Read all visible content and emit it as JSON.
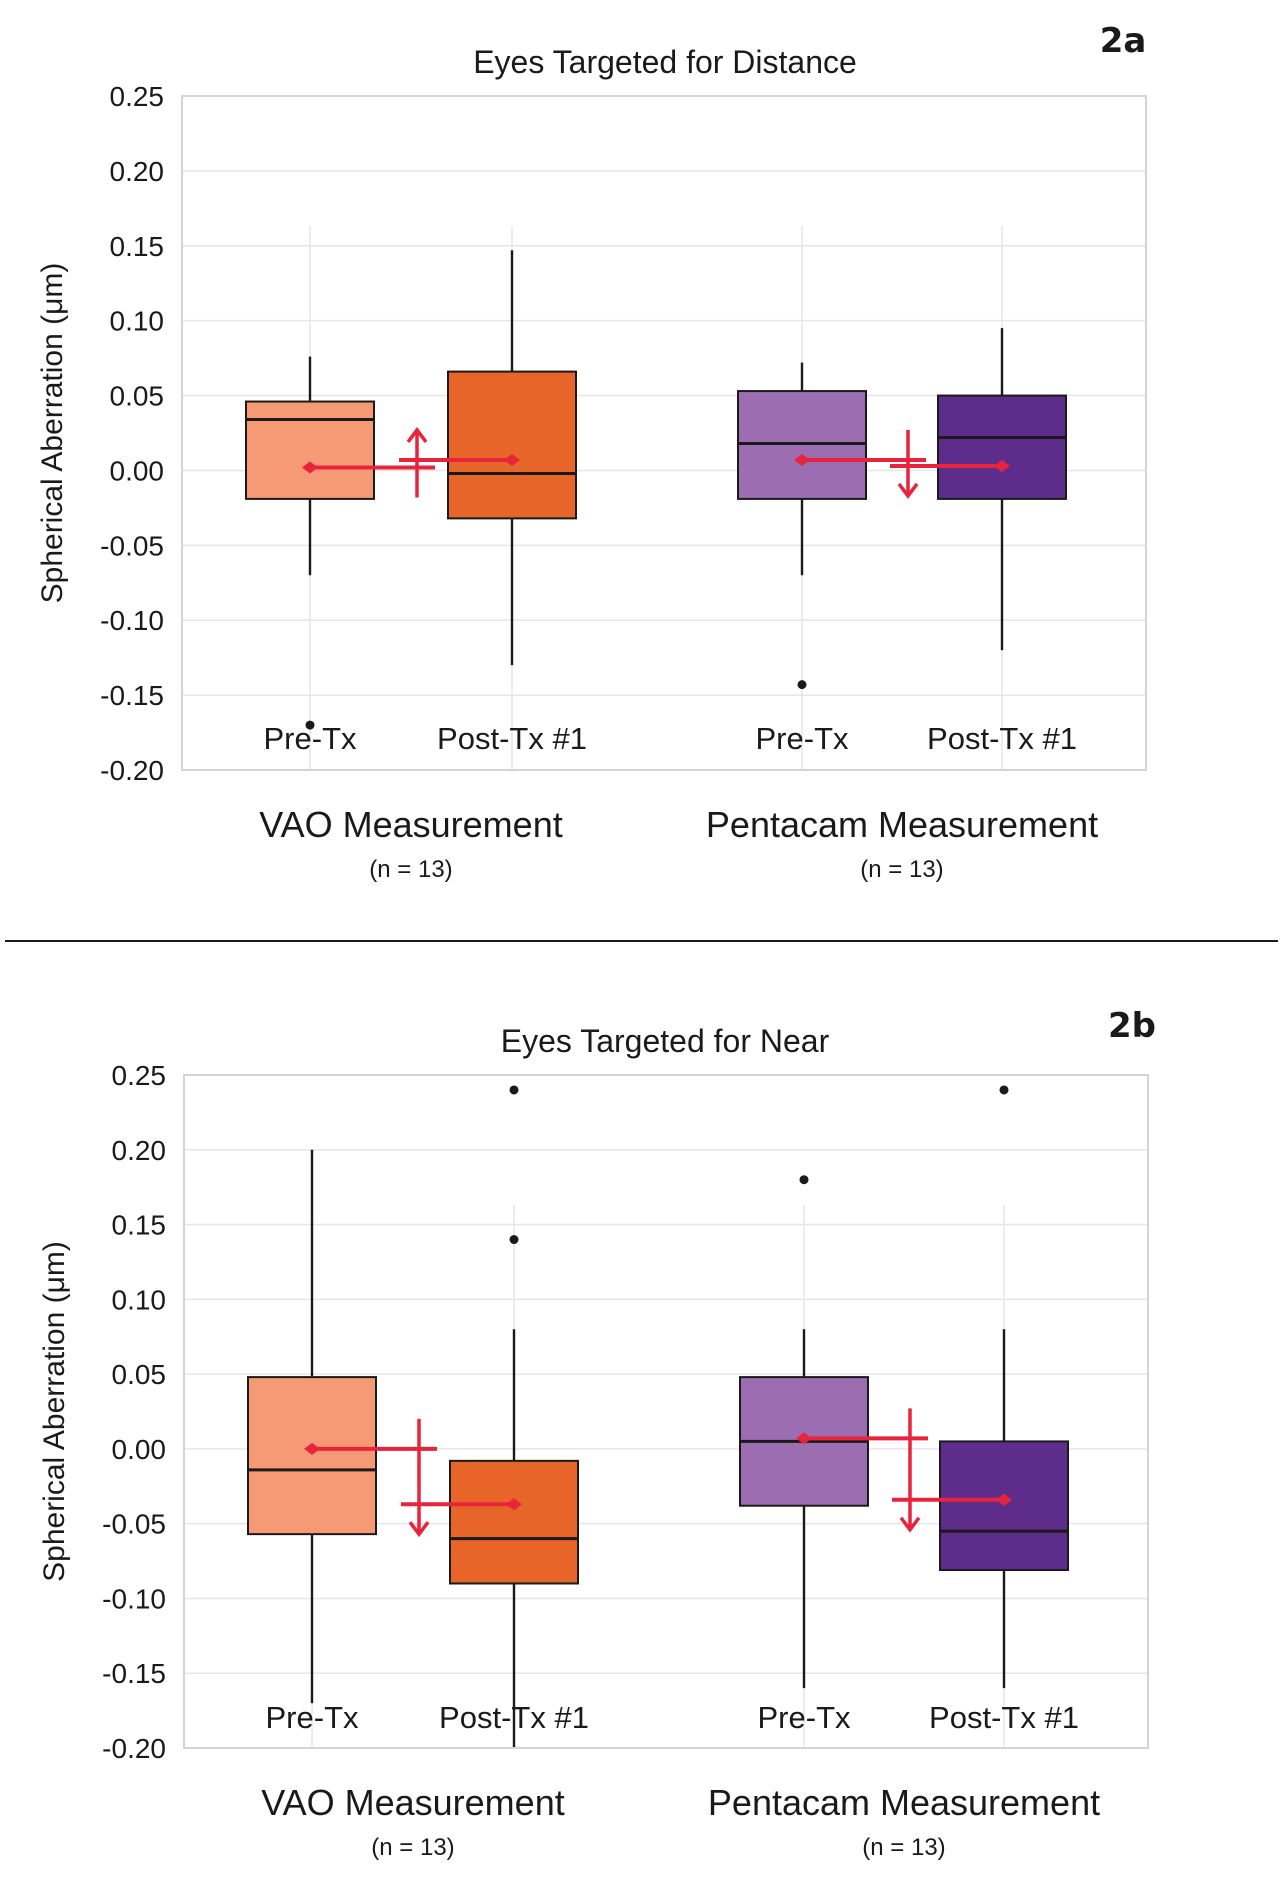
{
  "colors": {
    "vao_pre": "#F59A74",
    "vao_post": "#E8652A",
    "penta_pre": "#9C6EB1",
    "penta_post": "#5E2D8C",
    "mean_marker": "#E8243C"
  },
  "divider": "panel-separator",
  "chart_data": [
    {
      "type": "box",
      "panel_label": "2a",
      "title": "Eyes Targeted for Distance",
      "ylabel": "Spherical Aberration (μm)",
      "ylim": [
        -0.2,
        0.25
      ],
      "yticks": [
        {
          "v": 0.25,
          "label": "0.25"
        },
        {
          "v": 0.2,
          "label": "0.20"
        },
        {
          "v": 0.15,
          "label": "0.15"
        },
        {
          "v": 0.1,
          "label": "0.10"
        },
        {
          "v": 0.05,
          "label": "0.05"
        },
        {
          "v": 0.0,
          "label": "0.00"
        },
        {
          "v": -0.05,
          "label": "-0.05"
        },
        {
          "v": -0.1,
          "label": "-0.10"
        },
        {
          "v": -0.15,
          "label": "-0.15"
        },
        {
          "v": -0.2,
          "label": "-0.20"
        }
      ],
      "groups": [
        {
          "name": "VAO Measurement",
          "n": "(n = 13)"
        },
        {
          "name": "Pentacam Measurement",
          "n": "(n = 13)"
        }
      ],
      "series": [
        {
          "group": 0,
          "label": "Pre-Tx",
          "color_key": "vao_pre",
          "whisker_low": -0.07,
          "q1": -0.019,
          "median": 0.034,
          "q3": 0.046,
          "whisker_high": 0.076,
          "mean": 0.002,
          "outliers": [
            -0.17
          ]
        },
        {
          "group": 0,
          "label": "Post-Tx #1",
          "color_key": "vao_post",
          "whisker_low": -0.13,
          "q1": -0.032,
          "median": -0.002,
          "q3": 0.066,
          "whisker_high": 0.147,
          "mean": 0.007,
          "outliers": []
        },
        {
          "group": 1,
          "label": "Pre-Tx",
          "color_key": "penta_pre",
          "whisker_low": -0.07,
          "q1": -0.019,
          "median": 0.018,
          "q3": 0.053,
          "whisker_high": 0.072,
          "mean": 0.007,
          "outliers": [
            -0.143
          ]
        },
        {
          "group": 1,
          "label": "Post-Tx #1",
          "color_key": "penta_post",
          "whisker_low": -0.12,
          "q1": -0.019,
          "median": 0.022,
          "q3": 0.05,
          "whisker_high": 0.095,
          "mean": 0.003,
          "outliers": []
        }
      ],
      "change_arrows": [
        {
          "group": 0,
          "from": 0.002,
          "to": 0.007,
          "direction": "up"
        },
        {
          "group": 1,
          "from": 0.007,
          "to": 0.003,
          "direction": "down"
        }
      ]
    },
    {
      "type": "box",
      "panel_label": "2b",
      "title": "Eyes Targeted for Near",
      "ylabel": "Spherical Aberration (μm)",
      "ylim": [
        -0.2,
        0.25
      ],
      "yticks": [
        {
          "v": 0.25,
          "label": "0.25"
        },
        {
          "v": 0.2,
          "label": "0.20"
        },
        {
          "v": 0.15,
          "label": "0.15"
        },
        {
          "v": 0.1,
          "label": "0.10"
        },
        {
          "v": 0.05,
          "label": "0.05"
        },
        {
          "v": 0.0,
          "label": "0.00"
        },
        {
          "v": -0.05,
          "label": "-0.05"
        },
        {
          "v": -0.1,
          "label": "-0.10"
        },
        {
          "v": -0.15,
          "label": "-0.15"
        },
        {
          "v": -0.2,
          "label": "-0.20"
        }
      ],
      "groups": [
        {
          "name": "VAO Measurement",
          "n": "(n = 13)"
        },
        {
          "name": "Pentacam Measurement",
          "n": "(n = 13)"
        }
      ],
      "series": [
        {
          "group": 0,
          "label": "Pre-Tx",
          "color_key": "vao_pre",
          "whisker_low": -0.17,
          "q1": -0.057,
          "median": -0.014,
          "q3": 0.048,
          "whisker_high": 0.2,
          "mean": 0.0,
          "outliers": []
        },
        {
          "group": 0,
          "label": "Post-Tx #1",
          "color_key": "vao_post",
          "whisker_low": -0.2,
          "q1": -0.09,
          "median": -0.06,
          "q3": -0.008,
          "whisker_high": 0.08,
          "mean": -0.037,
          "outliers": [
            0.14,
            0.24
          ]
        },
        {
          "group": 1,
          "label": "Pre-Tx",
          "color_key": "penta_pre",
          "whisker_low": -0.16,
          "q1": -0.038,
          "median": 0.005,
          "q3": 0.048,
          "whisker_high": 0.08,
          "mean": 0.007,
          "outliers": [
            0.18
          ]
        },
        {
          "group": 1,
          "label": "Post-Tx #1",
          "color_key": "penta_post",
          "whisker_low": -0.16,
          "q1": -0.081,
          "median": -0.055,
          "q3": 0.005,
          "whisker_high": 0.08,
          "mean": -0.034,
          "outliers": [
            0.24
          ]
        }
      ],
      "change_arrows": [
        {
          "group": 0,
          "from": 0.0,
          "to": -0.037,
          "direction": "down"
        },
        {
          "group": 1,
          "from": 0.007,
          "to": -0.034,
          "direction": "down"
        }
      ]
    }
  ]
}
